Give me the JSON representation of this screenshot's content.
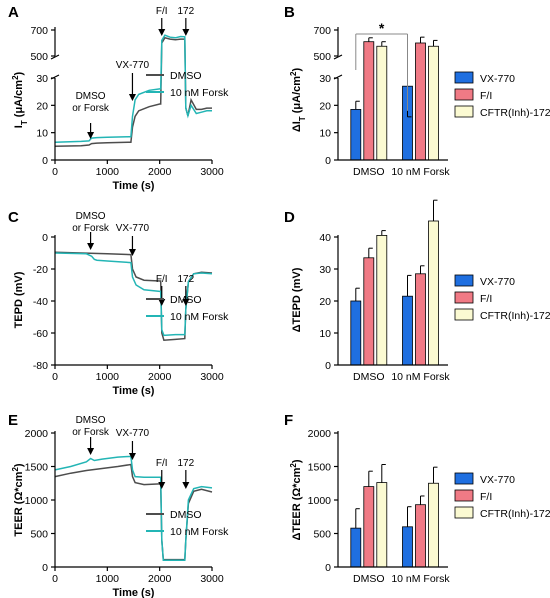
{
  "panel_letters": [
    "A",
    "B",
    "C",
    "D",
    "E",
    "F"
  ],
  "chart_data": [
    {
      "panel": "A",
      "type": "line",
      "ylabel_main": "I",
      "ylabel_sub": "T",
      "ylabel_unit": " (μA/cm",
      "ylabel_sup": "2",
      "ylabel_close": ")",
      "xlabel": "Time (s)",
      "xticks": [
        0,
        1000,
        2000,
        3000
      ],
      "yticks_lower": [
        0,
        10,
        20,
        30
      ],
      "yticks_upper": [
        500,
        700
      ],
      "legend": [
        "DMSO",
        "10 nM Forsk"
      ],
      "series": [
        {
          "name": "DMSO",
          "color": "#4d4d4d",
          "points": [
            [
              0,
              5
            ],
            [
              500,
              5.2
            ],
            [
              650,
              5.5
            ],
            [
              700,
              6
            ],
            [
              800,
              6.2
            ],
            [
              1000,
              6.3
            ],
            [
              1400,
              6.5
            ],
            [
              1450,
              6.5
            ],
            [
              1480,
              12
            ],
            [
              1530,
              16
            ],
            [
              1600,
              18
            ],
            [
              1800,
              19.5
            ],
            [
              2000,
              20.5
            ],
            [
              2020,
              20.5
            ],
            [
              2040,
              600
            ],
            [
              2100,
              640
            ],
            [
              2200,
              630
            ],
            [
              2300,
              625
            ],
            [
              2400,
              630
            ],
            [
              2480,
              630
            ],
            [
              2500,
              100
            ],
            [
              2540,
              40
            ],
            [
              2600,
              22
            ],
            [
              2700,
              18.5
            ],
            [
              2800,
              18.5
            ],
            [
              2900,
              19
            ],
            [
              3000,
              19
            ]
          ]
        },
        {
          "name": "10 nM Forsk",
          "color": "#23b5b5",
          "points": [
            [
              0,
              6.5
            ],
            [
              500,
              6.8
            ],
            [
              650,
              7
            ],
            [
              700,
              8
            ],
            [
              800,
              8.2
            ],
            [
              1000,
              8.3
            ],
            [
              1400,
              8.5
            ],
            [
              1450,
              8.5
            ],
            [
              1480,
              16
            ],
            [
              1530,
              22
            ],
            [
              1600,
              24
            ],
            [
              1800,
              25.5
            ],
            [
              2000,
              26
            ],
            [
              2020,
              26
            ],
            [
              2040,
              620
            ],
            [
              2100,
              660
            ],
            [
              2200,
              645
            ],
            [
              2300,
              640
            ],
            [
              2400,
              650
            ],
            [
              2480,
              648
            ],
            [
              2500,
              100
            ],
            [
              2540,
              40
            ],
            [
              2600,
              20
            ],
            [
              2700,
              17
            ],
            [
              2800,
              17.5
            ],
            [
              2900,
              18
            ],
            [
              3000,
              18
            ]
          ]
        }
      ],
      "annotations": [
        {
          "text1": "DMSO",
          "text2": "or Forsk",
          "x": 680
        },
        {
          "text1": "VX-770",
          "text2": "",
          "x": 1480
        },
        {
          "text1": "F/I",
          "text2": "",
          "x": 2040
        },
        {
          "text1": "172",
          "text2": "",
          "x": 2500
        }
      ]
    },
    {
      "panel": "B",
      "type": "bar",
      "ylabel_main": "ΔI",
      "ylabel_sub": "T",
      "ylabel_unit": " (μA/cm",
      "ylabel_sup": "2",
      "ylabel_close": ")",
      "categories": [
        "DMSO",
        "10 nM Forsk"
      ],
      "yticks_lower": [
        0,
        10,
        20,
        30
      ],
      "yticks_upper": [
        500,
        700
      ],
      "series": [
        {
          "name": "VX-770",
          "color": "#1f6fe0",
          "values": [
            18.5,
            27
          ],
          "errors": [
            3,
            5
          ]
        },
        {
          "name": "F/I",
          "color": "#f07a85",
          "values": [
            610,
            600
          ],
          "errors": [
            30,
            45
          ]
        },
        {
          "name": "CFTR(Inh)-172",
          "color": "#fbfad2",
          "values": [
            575,
            575
          ],
          "errors": [
            35,
            45
          ]
        }
      ],
      "significance": "*"
    },
    {
      "panel": "C",
      "type": "line",
      "ylabel": "TEPD (mV)",
      "xlabel": "Time (s)",
      "xticks": [
        0,
        1000,
        2000,
        3000
      ],
      "yticks": [
        0,
        -20,
        -40,
        -60,
        -80
      ],
      "ylim": [
        -80,
        0
      ],
      "legend": [
        "DMSO",
        "10 nM Forsk"
      ],
      "series": [
        {
          "name": "DMSO",
          "color": "#4d4d4d",
          "points": [
            [
              0,
              -9.5
            ],
            [
              500,
              -10
            ],
            [
              1000,
              -10.5
            ],
            [
              1450,
              -11
            ],
            [
              1480,
              -20
            ],
            [
              1550,
              -25
            ],
            [
              1700,
              -27
            ],
            [
              2000,
              -27.5
            ],
            [
              2020,
              -27.5
            ],
            [
              2040,
              -60
            ],
            [
              2080,
              -64.5
            ],
            [
              2300,
              -64
            ],
            [
              2480,
              -63.5
            ],
            [
              2500,
              -45
            ],
            [
              2550,
              -28
            ],
            [
              2650,
              -23
            ],
            [
              2800,
              -22
            ],
            [
              3000,
              -22.5
            ]
          ]
        },
        {
          "name": "10 nM Forsk",
          "color": "#23b5b5",
          "points": [
            [
              0,
              -10
            ],
            [
              600,
              -10.5
            ],
            [
              700,
              -12
            ],
            [
              750,
              -14
            ],
            [
              800,
              -14.5
            ],
            [
              1000,
              -15
            ],
            [
              1450,
              -16
            ],
            [
              1480,
              -25
            ],
            [
              1550,
              -30
            ],
            [
              1700,
              -33
            ],
            [
              2000,
              -34
            ],
            [
              2020,
              -34
            ],
            [
              2040,
              -58
            ],
            [
              2080,
              -61.5
            ],
            [
              2300,
              -61
            ],
            [
              2480,
              -61
            ],
            [
              2500,
              -45
            ],
            [
              2550,
              -28
            ],
            [
              2650,
              -23
            ],
            [
              2800,
              -22.5
            ],
            [
              3000,
              -23
            ]
          ]
        }
      ],
      "annotations": [
        {
          "text1": "DMSO",
          "text2": "or Forsk",
          "x": 680
        },
        {
          "text1": "VX-770",
          "text2": "",
          "x": 1480
        },
        {
          "text1": "F/I",
          "text2": "",
          "x": 2040
        },
        {
          "text1": "172",
          "text2": "",
          "x": 2500
        }
      ]
    },
    {
      "panel": "D",
      "type": "bar",
      "ylabel": "ΔTEPD (mV)",
      "categories": [
        "DMSO",
        "10 nM Forsk"
      ],
      "yticks": [
        0,
        10,
        20,
        30,
        40
      ],
      "ylim": [
        0,
        40
      ],
      "series": [
        {
          "name": "VX-770",
          "color": "#1f6fe0",
          "values": [
            20,
            21.5
          ],
          "errors": [
            4,
            6.5
          ]
        },
        {
          "name": "F/I",
          "color": "#f07a85",
          "values": [
            33.5,
            28.5
          ],
          "errors": [
            3,
            2.5
          ]
        },
        {
          "name": "CFTR(Inh)-172",
          "color": "#fbfad2",
          "values": [
            40.5,
            45
          ],
          "errors": [
            1.5,
            6.5
          ]
        }
      ]
    },
    {
      "panel": "E",
      "type": "line",
      "ylabel": "TEER (Ω*cm",
      "ylabel_sup": "2",
      "ylabel_close": ")",
      "xlabel": "Time (s)",
      "xticks": [
        0,
        1000,
        2000,
        3000
      ],
      "yticks": [
        0,
        500,
        1000,
        1500,
        2000
      ],
      "ylim": [
        0,
        2000
      ],
      "legend": [
        "DMSO",
        "10 nM Forsk"
      ],
      "series": [
        {
          "name": "DMSO",
          "color": "#4d4d4d",
          "points": [
            [
              0,
              1350
            ],
            [
              300,
              1400
            ],
            [
              600,
              1440
            ],
            [
              900,
              1470
            ],
            [
              1200,
              1500
            ],
            [
              1450,
              1530
            ],
            [
              1480,
              1350
            ],
            [
              1530,
              1260
            ],
            [
              1700,
              1230
            ],
            [
              2000,
              1240
            ],
            [
              2020,
              1240
            ],
            [
              2040,
              400
            ],
            [
              2070,
              110
            ],
            [
              2200,
              110
            ],
            [
              2480,
              110
            ],
            [
              2500,
              400
            ],
            [
              2550,
              950
            ],
            [
              2650,
              1130
            ],
            [
              2800,
              1160
            ],
            [
              3000,
              1120
            ]
          ]
        },
        {
          "name": "10 nM Forsk",
          "color": "#23b5b5",
          "points": [
            [
              0,
              1450
            ],
            [
              300,
              1500
            ],
            [
              600,
              1570
            ],
            [
              680,
              1620
            ],
            [
              750,
              1590
            ],
            [
              900,
              1610
            ],
            [
              1200,
              1640
            ],
            [
              1450,
              1650
            ],
            [
              1480,
              1450
            ],
            [
              1530,
              1350
            ],
            [
              1700,
              1340
            ],
            [
              2000,
              1340
            ],
            [
              2020,
              1340
            ],
            [
              2040,
              400
            ],
            [
              2070,
              100
            ],
            [
              2200,
              100
            ],
            [
              2480,
              100
            ],
            [
              2500,
              400
            ],
            [
              2550,
              1000
            ],
            [
              2650,
              1170
            ],
            [
              2800,
              1200
            ],
            [
              3000,
              1180
            ]
          ]
        }
      ],
      "annotations": [
        {
          "text1": "DMSO",
          "text2": "or Forsk",
          "x": 680
        },
        {
          "text1": "VX-770",
          "text2": "",
          "x": 1480
        },
        {
          "text1": "F/I",
          "text2": "",
          "x": 2040
        },
        {
          "text1": "172",
          "text2": "",
          "x": 2500
        }
      ]
    },
    {
      "panel": "F",
      "type": "bar",
      "ylabel": "ΔTEER (Ω*cm",
      "ylabel_sup": "2",
      "ylabel_close": ")",
      "categories": [
        "DMSO",
        "10 nM Forsk"
      ],
      "yticks": [
        0,
        500,
        1000,
        1500,
        2000
      ],
      "ylim": [
        0,
        2000
      ],
      "series": [
        {
          "name": "VX-770",
          "color": "#1f6fe0",
          "values": [
            580,
            600
          ],
          "errors": [
            290,
            300
          ]
        },
        {
          "name": "F/I",
          "color": "#f07a85",
          "values": [
            1200,
            930
          ],
          "errors": [
            230,
            130
          ]
        },
        {
          "name": "CFTR(Inh)-172",
          "color": "#fbfad2",
          "values": [
            1260,
            1250
          ],
          "errors": [
            270,
            240
          ]
        }
      ]
    }
  ]
}
